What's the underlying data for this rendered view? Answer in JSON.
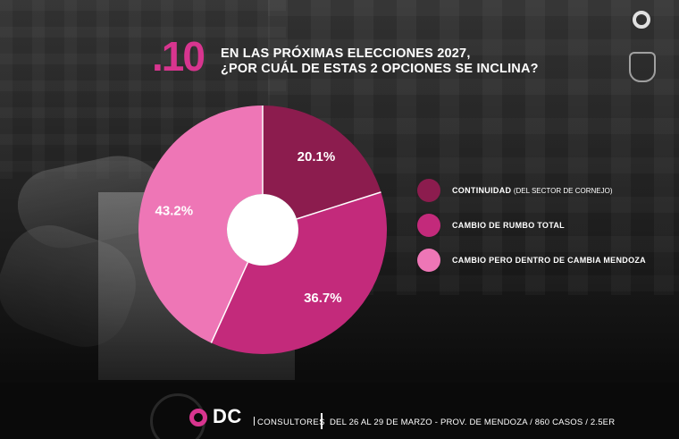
{
  "question": {
    "number": ".10",
    "title_line1": "EN LAS PRÓXIMAS ELECCIONES 2027,",
    "title_line2": "¿POR CUÁL DE ESTAS 2 OPCIONES SE INCLINA?"
  },
  "chart_data": {
    "type": "pie",
    "donut": true,
    "title": "EN LAS PRÓXIMAS ELECCIONES 2027, ¿POR CUÁL DE ESTAS 2 OPCIONES SE INCLINA?",
    "series": [
      {
        "name": "CONTINUIDAD",
        "name_note": "(DEL SECTOR DE CORNEJO)",
        "value": 20.1,
        "label": "20.1%",
        "color": "#8c1c4e"
      },
      {
        "name": "CAMBIO DE RUMBO TOTAL",
        "value": 36.7,
        "label": "36.7%",
        "color": "#c32a7b"
      },
      {
        "name": "CAMBIO PERO DENTRO DE CAMBIA MENDOZA",
        "value": 43.2,
        "label": "43.2%",
        "color": "#ee76b6"
      }
    ],
    "legend_position": "right"
  },
  "footer": {
    "brand": "DC",
    "brand_sub": "CONSULTORES",
    "details": "DEL 26 AL 29 DE MARZO - PROV. DE MENDOZA / 860 CASOS / 2.5ER"
  },
  "colors": {
    "accent": "#d8358f",
    "background": "#141414",
    "text": "#ffffff"
  },
  "icons": [
    "dc-logo-icon",
    "coat-of-arms-icon",
    "national-seal-icon"
  ]
}
